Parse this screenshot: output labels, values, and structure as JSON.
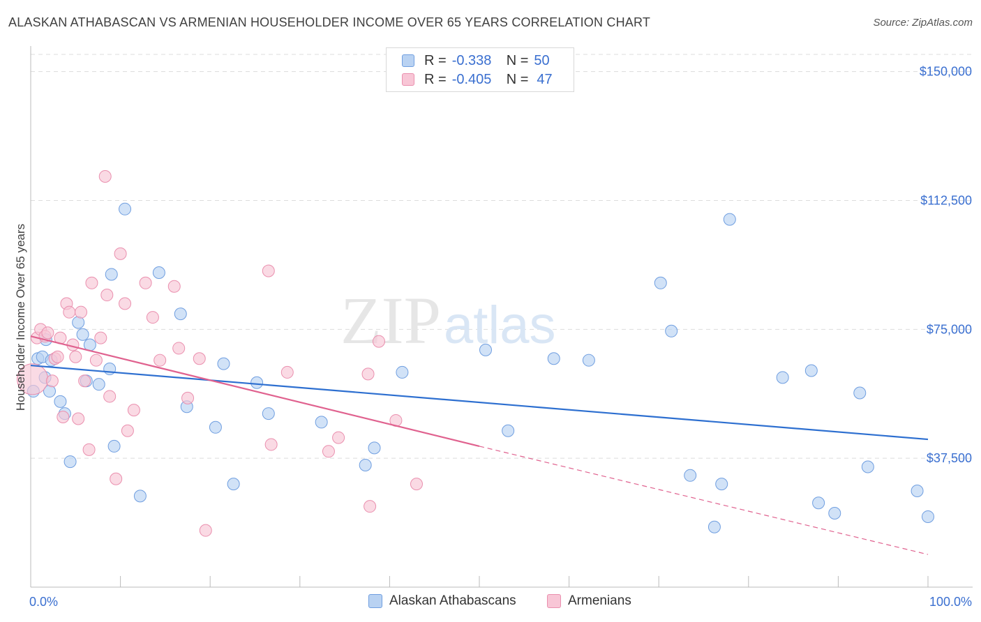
{
  "title": "ALASKAN ATHABASCAN VS ARMENIAN HOUSEHOLDER INCOME OVER 65 YEARS CORRELATION CHART",
  "source": "Source: ZipAtlas.com",
  "watermark": {
    "zip": "ZIP",
    "atlas": "atlas"
  },
  "legend": {
    "rows": [
      {
        "r_label": "R =",
        "r_value": "-0.338",
        "n_label": "N =",
        "n_value": "50"
      },
      {
        "r_label": "R =",
        "r_value": "-0.405",
        "n_label": "N =",
        "n_value": "47"
      }
    ]
  },
  "chart_data": {
    "type": "scatter",
    "title": "ALASKAN ATHABASCAN VS ARMENIAN HOUSEHOLDER INCOME OVER 65 YEARS CORRELATION CHART",
    "xlabel": "",
    "ylabel": "Householder Income Over 65 years",
    "xlim": [
      0,
      100
    ],
    "ylim": [
      0,
      155000
    ],
    "x_tick_labels": [
      "0.0%",
      "100.0%"
    ],
    "y_ticks": [
      37500,
      75000,
      112500,
      150000
    ],
    "y_tick_labels": [
      "$37,500",
      "$75,000",
      "$112,500",
      "$150,000"
    ],
    "colors": {
      "blue_fill": "#b9d2f2",
      "blue_stroke": "#6f9ee0",
      "blue_line": "#2d6fd0",
      "pink_fill": "#f8c6d6",
      "pink_stroke": "#ea8fae",
      "pink_line": "#e0628f",
      "axis_text": "#3a6fd0"
    },
    "series": [
      {
        "name": "Alaskan Athabascans",
        "color": "#6f9ee0",
        "r": -0.338,
        "n": 50,
        "trend": {
          "x0": 0,
          "y0": 64500,
          "x1": 100,
          "y1": 43000
        },
        "points": [
          [
            0.3,
            57000
          ],
          [
            0.8,
            66500
          ],
          [
            1.3,
            67000
          ],
          [
            1.6,
            61000
          ],
          [
            1.7,
            72000
          ],
          [
            2.1,
            57000
          ],
          [
            2.3,
            66000
          ],
          [
            3.3,
            54000
          ],
          [
            3.8,
            50500
          ],
          [
            4.4,
            36500
          ],
          [
            5.3,
            77000
          ],
          [
            5.8,
            73500
          ],
          [
            6.2,
            60000
          ],
          [
            6.6,
            70500
          ],
          [
            7.6,
            59000
          ],
          [
            8.8,
            63500
          ],
          [
            9.0,
            91000
          ],
          [
            9.3,
            41000
          ],
          [
            10.5,
            110000
          ],
          [
            12.2,
            26500
          ],
          [
            14.3,
            91500
          ],
          [
            16.7,
            79500
          ],
          [
            17.4,
            52500
          ],
          [
            20.6,
            46500
          ],
          [
            21.5,
            65000
          ],
          [
            22.6,
            30000
          ],
          [
            25.2,
            59500
          ],
          [
            26.5,
            50500
          ],
          [
            32.4,
            48000
          ],
          [
            37.3,
            35500
          ],
          [
            38.3,
            40500
          ],
          [
            41.4,
            62500
          ],
          [
            50.7,
            69000
          ],
          [
            53.2,
            45500
          ],
          [
            58.3,
            66500
          ],
          [
            62.2,
            66000
          ],
          [
            70.2,
            88500
          ],
          [
            71.4,
            74500
          ],
          [
            73.5,
            32500
          ],
          [
            76.2,
            17500
          ],
          [
            77.0,
            30000
          ],
          [
            77.9,
            107000
          ],
          [
            83.8,
            61000
          ],
          [
            87.0,
            63000
          ],
          [
            87.8,
            24500
          ],
          [
            89.6,
            21500
          ],
          [
            92.4,
            56500
          ],
          [
            93.3,
            35000
          ],
          [
            98.8,
            28000
          ],
          [
            100.0,
            20500
          ]
        ]
      },
      {
        "name": "Armenians",
        "color": "#ea8fae",
        "r": -0.405,
        "n": 47,
        "trend": {
          "x0": 0,
          "y0": 73000,
          "x1": 50,
          "y1": 41000,
          "dash_x1": 100,
          "dash_y1": 9500
        },
        "points": [
          [
            0.2,
            60500
          ],
          [
            0.7,
            72500
          ],
          [
            1.1,
            75000
          ],
          [
            1.6,
            73000
          ],
          [
            1.9,
            74000
          ],
          [
            2.4,
            60000
          ],
          [
            2.7,
            66500
          ],
          [
            3.0,
            67000
          ],
          [
            3.3,
            72500
          ],
          [
            3.6,
            49500
          ],
          [
            4.0,
            82500
          ],
          [
            4.3,
            80000
          ],
          [
            4.7,
            70500
          ],
          [
            5.0,
            67000
          ],
          [
            5.3,
            49000
          ],
          [
            5.6,
            80000
          ],
          [
            6.0,
            60000
          ],
          [
            6.5,
            40000
          ],
          [
            6.8,
            88500
          ],
          [
            7.3,
            66000
          ],
          [
            7.8,
            72500
          ],
          [
            8.5,
            85000
          ],
          [
            8.8,
            55500
          ],
          [
            9.5,
            31500
          ],
          [
            10.0,
            97000
          ],
          [
            10.5,
            82500
          ],
          [
            10.8,
            45500
          ],
          [
            11.5,
            51500
          ],
          [
            12.8,
            88500
          ],
          [
            13.6,
            78500
          ],
          [
            14.4,
            66000
          ],
          [
            16.0,
            87500
          ],
          [
            16.5,
            69500
          ],
          [
            17.5,
            55000
          ],
          [
            18.8,
            66500
          ],
          [
            19.5,
            16500
          ],
          [
            26.5,
            92000
          ],
          [
            26.8,
            41500
          ],
          [
            28.6,
            62500
          ],
          [
            33.2,
            39500
          ],
          [
            34.3,
            43500
          ],
          [
            37.6,
            62000
          ],
          [
            37.8,
            23500
          ],
          [
            38.8,
            71500
          ],
          [
            40.7,
            48500
          ],
          [
            43.0,
            30000
          ],
          [
            8.3,
            119500
          ]
        ]
      }
    ]
  },
  "bottom_legend": [
    {
      "label": "Alaskan Athabascans"
    },
    {
      "label": "Armenians"
    }
  ]
}
